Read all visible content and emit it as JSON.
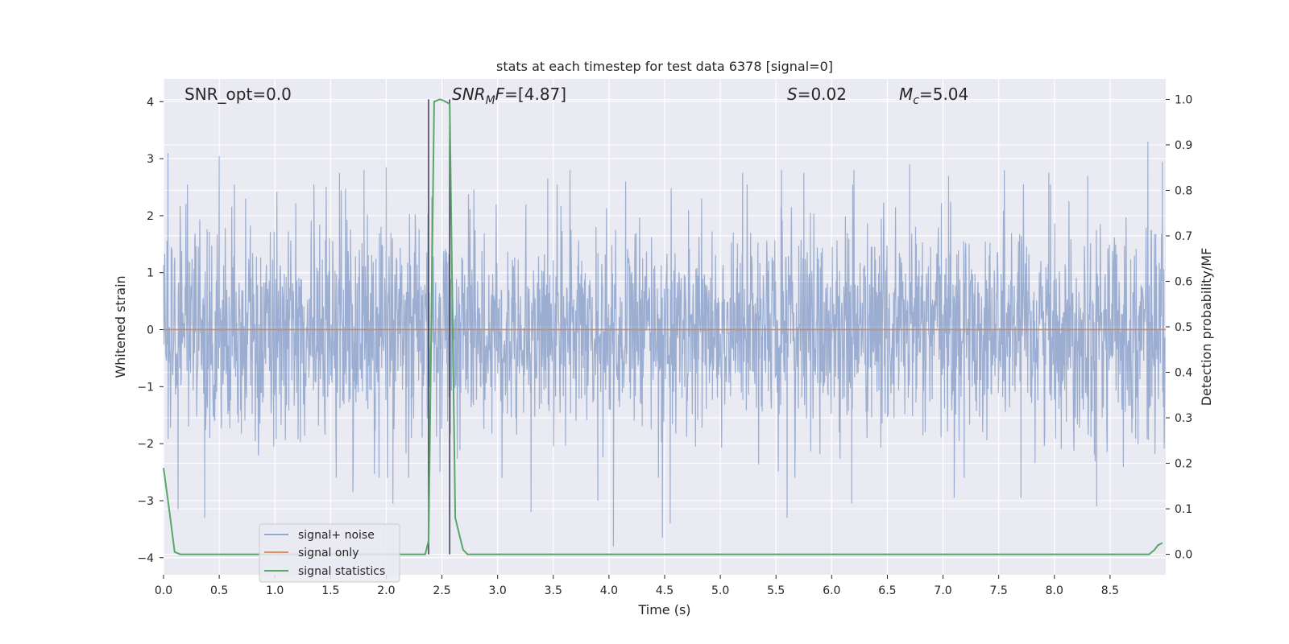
{
  "chart_data": {
    "type": "line",
    "title": "stats at each timestep for test data 6378 [signal=0]",
    "xlabel": "Time (s)",
    "ylabel": "Whitened strain",
    "y2label": "Detection probability/MF",
    "xlim": [
      0.0,
      9.0
    ],
    "ylim": [
      -4.3,
      4.4
    ],
    "y2lim": [
      -0.045,
      1.045
    ],
    "xticks": [
      0.0,
      0.5,
      1.0,
      1.5,
      2.0,
      2.5,
      3.0,
      3.5,
      4.0,
      4.5,
      5.0,
      5.5,
      6.0,
      6.5,
      7.0,
      7.5,
      8.0,
      8.5
    ],
    "yticks": [
      -4,
      -3,
      -2,
      -1,
      0,
      1,
      2,
      3,
      4
    ],
    "y2ticks": [
      0.0,
      0.1,
      0.2,
      0.3,
      0.4,
      0.5,
      0.6,
      0.7,
      0.8,
      0.9,
      1.0
    ],
    "grid": true,
    "legend_position": "lower-left",
    "annotations": [
      {
        "id": "snr-opt",
        "text": "SNR_opt=0.0"
      },
      {
        "id": "snr-mf",
        "text": "SNR_MF=[4.87]"
      },
      {
        "id": "s-stat",
        "text": "S=0.02"
      },
      {
        "id": "mc",
        "text": "M_c=5.04"
      }
    ],
    "vlines": [
      2.38,
      2.57
    ],
    "series": [
      {
        "name": "signal+ noise",
        "color": "#4c72b0",
        "opacity": 0.5,
        "axis": "left",
        "description_stats": {
          "approx_min": -3.8,
          "approx_max": 3.3,
          "envelope_core": 1.2,
          "duration": 9.0
        },
        "peaks": [
          [
            0.04,
            3.1
          ],
          [
            0.5,
            3.05
          ],
          [
            1.35,
            2.55
          ],
          [
            1.58,
            2.75
          ],
          [
            1.8,
            2.8
          ],
          [
            2.0,
            2.85
          ],
          [
            3.45,
            2.65
          ],
          [
            3.65,
            2.8
          ],
          [
            4.15,
            2.6
          ],
          [
            5.2,
            2.75
          ],
          [
            5.55,
            2.8
          ],
          [
            5.75,
            2.75
          ],
          [
            6.2,
            2.8
          ],
          [
            6.7,
            2.9
          ],
          [
            7.05,
            2.7
          ],
          [
            7.55,
            2.8
          ],
          [
            7.95,
            2.75
          ],
          [
            8.3,
            2.7
          ],
          [
            8.84,
            3.3
          ],
          [
            8.97,
            2.95
          ]
        ],
        "troughs": [
          [
            0.13,
            -3.15
          ],
          [
            0.37,
            -3.3
          ],
          [
            1.7,
            -2.85
          ],
          [
            2.06,
            -3.05
          ],
          [
            3.3,
            -3.2
          ],
          [
            3.9,
            -3.0
          ],
          [
            4.04,
            -3.8
          ],
          [
            4.48,
            -3.65
          ],
          [
            4.55,
            -3.4
          ],
          [
            5.6,
            -3.3
          ],
          [
            6.18,
            -3.05
          ],
          [
            7.1,
            -2.95
          ],
          [
            7.7,
            -2.95
          ],
          [
            8.38,
            -3.1
          ]
        ]
      },
      {
        "name": "signal only",
        "color": "#dd8452",
        "axis": "left",
        "x": [
          0.0,
          9.0
        ],
        "y": [
          0.0,
          0.0
        ]
      },
      {
        "name": "signal statistics",
        "color": "#55a868",
        "axis": "right",
        "x": [
          0.0,
          0.05,
          0.1,
          0.15,
          0.2,
          2.3,
          2.35,
          2.38,
          2.43,
          2.48,
          2.51,
          2.57,
          2.62,
          2.69,
          2.73,
          2.78,
          7.4,
          7.5,
          8.8,
          8.85,
          8.9,
          8.93,
          8.97
        ],
        "y": [
          0.19,
          0.1,
          0.005,
          0.0,
          0.0,
          0.0,
          0.0,
          0.03,
          0.995,
          1.0,
          0.998,
          0.99,
          0.08,
          0.01,
          0.0,
          0.0,
          0.0,
          0.0,
          0.0,
          0.0,
          0.01,
          0.02,
          0.025
        ]
      }
    ]
  }
}
